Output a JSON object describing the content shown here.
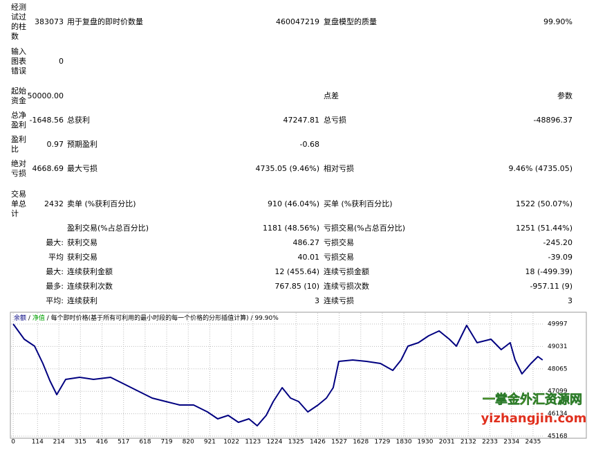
{
  "table": {
    "rows": [
      [
        "经测试过的柱数",
        "383073",
        "用于复盘的即时价数量",
        "460047219",
        "复盘模型的质量",
        "99.90%"
      ],
      [
        "输入图表错误",
        "0",
        null,
        null,
        null,
        null
      ],
      [
        "起始资金",
        "50000.00",
        null,
        null,
        "点差",
        "参数"
      ],
      [
        "总净盈利",
        "-1648.56",
        "总获利",
        "47247.81",
        "总亏损",
        "-48896.37"
      ],
      [
        "盈利比",
        "0.97",
        "预期盈利",
        "-0.68",
        null,
        null
      ],
      [
        "绝对亏损",
        "4668.69",
        "最大亏损",
        "4735.05 (9.46%)",
        "相对亏损",
        "9.46% (4735.05)"
      ],
      [
        "交易单总计",
        "2432",
        "卖单 (%获利百分比)",
        "910 (46.04%)",
        "买单 (%获利百分比)",
        "1522 (50.07%)"
      ],
      [
        null,
        null,
        "盈利交易(%占总百分比)",
        "1181 (48.56%)",
        "亏损交易(%占总百分比)",
        "1251 (51.44%)"
      ],
      [
        null,
        "最大:",
        "获利交易",
        "486.27",
        "亏损交易",
        "-245.20"
      ],
      [
        null,
        "平均",
        "获利交易",
        "40.01",
        "亏损交易",
        "-39.09"
      ],
      [
        null,
        "最大:",
        "连续获利金额",
        "12 (455.64)",
        "连续亏损金额",
        "18 (-499.39)"
      ],
      [
        null,
        "最多:",
        "连续获利次数",
        "767.85 (10)",
        "连续亏损次数",
        "-957.11 (9)"
      ],
      [
        null,
        "平均:",
        "连续获利",
        "3",
        "连续亏损",
        "3"
      ]
    ]
  },
  "chart_data": {
    "type": "line",
    "separator": "/",
    "equity_label": {
      "text": "净值",
      "color": "#00a000"
    },
    "model_note": "每个即时价格(基于所有可利用的最小时段的每一个价格的分形插值计算)",
    "quality": "99.90%",
    "x": [
      0,
      52,
      100,
      139,
      172,
      204,
      246,
      311,
      376,
      456,
      521,
      586,
      651,
      715,
      780,
      845,
      910,
      958,
      1007,
      1055,
      1104,
      1143,
      1185,
      1218,
      1260,
      1299,
      1337,
      1380,
      1428,
      1467,
      1499,
      1525,
      1590,
      1655,
      1720,
      1778,
      1817,
      1849,
      1898,
      1946,
      1995,
      2043,
      2076,
      2124,
      2173,
      2238,
      2286,
      2328,
      2351,
      2383,
      2425,
      2458,
      2480
    ],
    "series": [
      {
        "name": "余额",
        "color": "#000080",
        "values": [
          49997,
          49341,
          49043,
          48298,
          47552,
          46956,
          47612,
          47701,
          47612,
          47701,
          47403,
          47105,
          46807,
          46658,
          46509,
          46509,
          46211,
          45913,
          46062,
          45764,
          45913,
          45615,
          46062,
          46658,
          47254,
          46807,
          46658,
          46211,
          46509,
          46807,
          47254,
          48387,
          48447,
          48387,
          48298,
          48000,
          48447,
          49043,
          49192,
          49490,
          49699,
          49341,
          49043,
          49937,
          49192,
          49341,
          48894,
          49192,
          48447,
          47850,
          48298,
          48596,
          48447
        ]
      }
    ],
    "xlim": [
      -10,
      2487
    ],
    "ylim": [
      45108,
      50474
    ],
    "xticks": [
      0,
      114,
      214,
      315,
      416,
      517,
      618,
      719,
      820,
      921,
      1022,
      1123,
      1224,
      1325,
      1426,
      1527,
      1628,
      1729,
      1830,
      1930,
      2031,
      2132,
      2233,
      2334,
      2435
    ],
    "yticks": [
      45168,
      46134,
      47099,
      48065,
      49031,
      49997
    ],
    "grid": true,
    "watermark": [
      "一掌金外汇资源网",
      "yizhangjin.com"
    ]
  }
}
